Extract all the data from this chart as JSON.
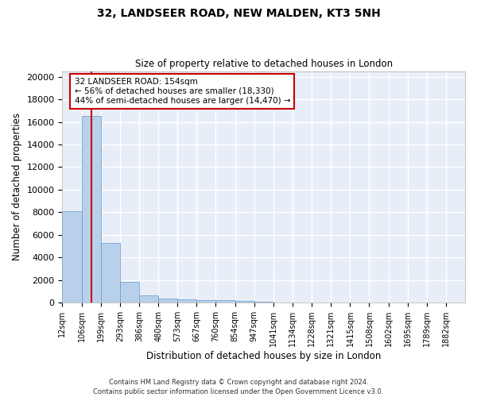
{
  "title_line1": "32, LANDSEER ROAD, NEW MALDEN, KT3 5NH",
  "title_line2": "Size of property relative to detached houses in London",
  "xlabel": "Distribution of detached houses by size in London",
  "ylabel": "Number of detached properties",
  "bar_color": "#b8d0ea",
  "bar_edge_color": "#6699cc",
  "background_color": "#e8eef8",
  "grid_color": "#ffffff",
  "red_line_color": "#cc0000",
  "annotation_text": "32 LANDSEER ROAD: 154sqm\n← 56% of detached houses are smaller (18,330)\n44% of semi-detached houses are larger (14,470) →",
  "annotation_box_color": "#ffffff",
  "annotation_border_color": "#cc0000",
  "footer_line1": "Contains HM Land Registry data © Crown copyright and database right 2024.",
  "footer_line2": "Contains public sector information licensed under the Open Government Licence v3.0.",
  "bin_labels": [
    "12sqm",
    "106sqm",
    "199sqm",
    "293sqm",
    "386sqm",
    "480sqm",
    "573sqm",
    "667sqm",
    "760sqm",
    "854sqm",
    "947sqm",
    "1041sqm",
    "1134sqm",
    "1228sqm",
    "1321sqm",
    "1415sqm",
    "1508sqm",
    "1602sqm",
    "1695sqm",
    "1789sqm",
    "1882sqm"
  ],
  "bin_edges": [
    12,
    106,
    199,
    293,
    386,
    480,
    573,
    667,
    760,
    854,
    947,
    1041,
    1134,
    1228,
    1321,
    1415,
    1508,
    1602,
    1695,
    1789,
    1882
  ],
  "bar_heights": [
    8100,
    16500,
    5300,
    1850,
    650,
    350,
    270,
    200,
    200,
    150,
    80,
    50,
    30,
    20,
    15,
    10,
    8,
    6,
    5,
    4
  ],
  "red_line_x": 154,
  "ylim": [
    0,
    20500
  ],
  "yticks": [
    0,
    2000,
    4000,
    6000,
    8000,
    10000,
    12000,
    14000,
    16000,
    18000,
    20000
  ]
}
